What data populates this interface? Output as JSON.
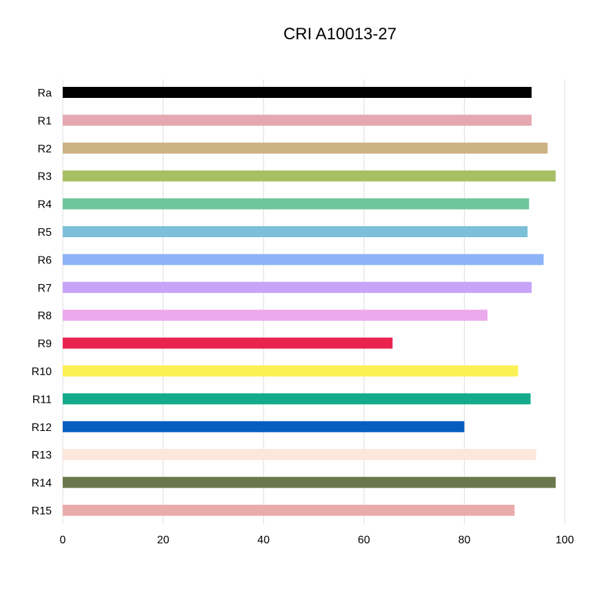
{
  "chart_data": {
    "type": "bar",
    "orientation": "horizontal",
    "title": "CRI A10013-27",
    "xlabel": "",
    "ylabel": "",
    "xlim": [
      0,
      100
    ],
    "x_ticks": [
      0,
      20,
      40,
      60,
      80,
      100
    ],
    "grid": "vertical",
    "legend": "none",
    "categories": [
      "Ra",
      "R1",
      "R2",
      "R3",
      "R4",
      "R5",
      "R6",
      "R7",
      "R8",
      "R9",
      "R10",
      "R11",
      "R12",
      "R13",
      "R14",
      "R15"
    ],
    "values": [
      93.4,
      93.4,
      96.6,
      98.2,
      92.9,
      92.6,
      95.8,
      93.4,
      84.6,
      65.7,
      90.7,
      93.2,
      80.0,
      94.3,
      98.2,
      90.0
    ],
    "colors": [
      "#000000",
      "#e5a7b0",
      "#cdb285",
      "#a8c063",
      "#6fc59c",
      "#7cbfd9",
      "#8db3f7",
      "#c7a4f8",
      "#ebaaec",
      "#e9234d",
      "#fbf155",
      "#13ab8b",
      "#065ebf",
      "#fde6db",
      "#68784c",
      "#eaacaa"
    ]
  }
}
